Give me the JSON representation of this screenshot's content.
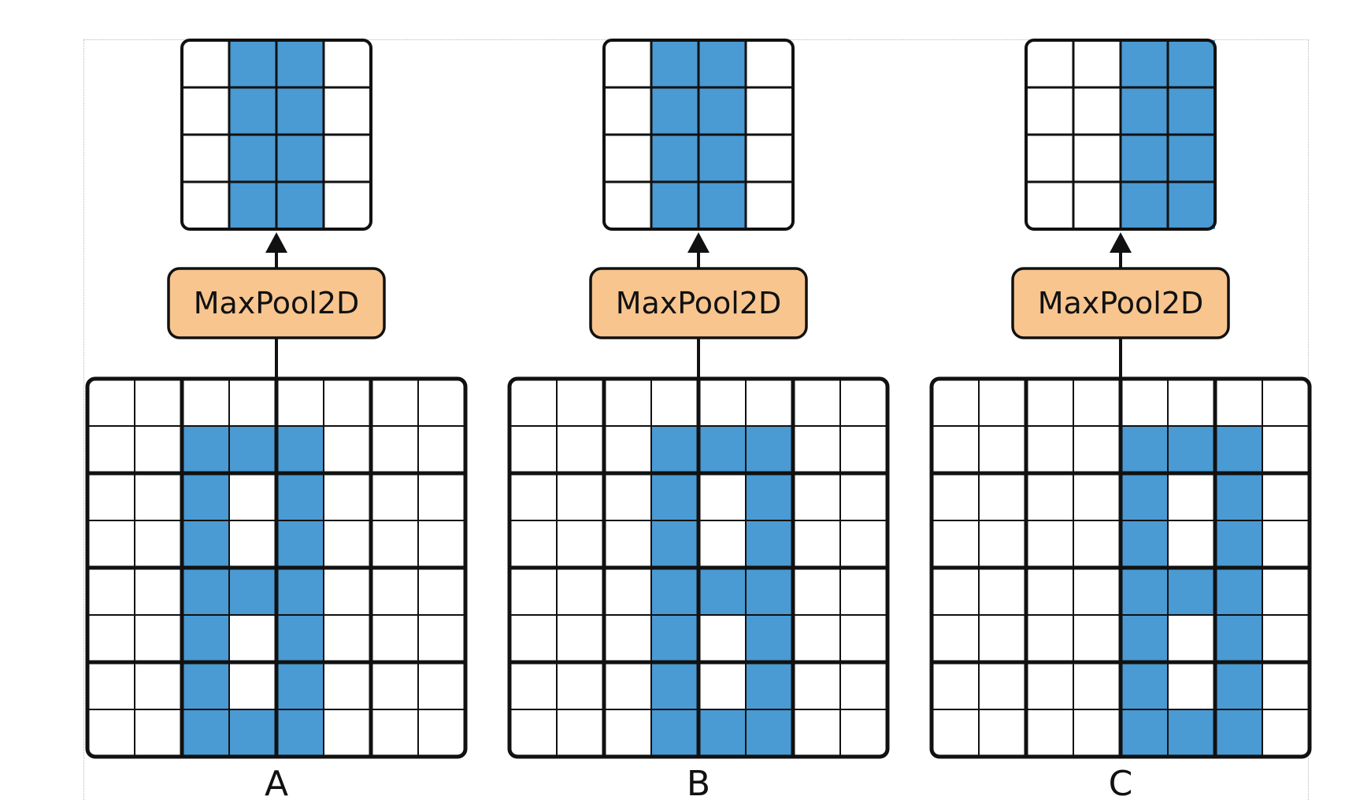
{
  "colors": {
    "fill": "#4a9ad3",
    "empty": "#ffffff",
    "line": "#111111",
    "box_fill": "#f8c58f"
  },
  "panels": [
    {
      "label": "A",
      "op_label": "MaxPool2D",
      "input": [
        [
          0,
          0,
          0,
          0,
          0,
          0,
          0,
          0
        ],
        [
          0,
          0,
          1,
          1,
          1,
          0,
          0,
          0
        ],
        [
          0,
          0,
          1,
          0,
          1,
          0,
          0,
          0
        ],
        [
          0,
          0,
          1,
          0,
          1,
          0,
          0,
          0
        ],
        [
          0,
          0,
          1,
          1,
          1,
          0,
          0,
          0
        ],
        [
          0,
          0,
          1,
          0,
          1,
          0,
          0,
          0
        ],
        [
          0,
          0,
          1,
          0,
          1,
          0,
          0,
          0
        ],
        [
          0,
          0,
          1,
          1,
          1,
          0,
          0,
          0
        ]
      ],
      "output": [
        [
          0,
          1,
          1,
          0
        ],
        [
          0,
          1,
          1,
          0
        ],
        [
          0,
          1,
          1,
          0
        ],
        [
          0,
          1,
          1,
          0
        ]
      ]
    },
    {
      "label": "B",
      "op_label": "MaxPool2D",
      "input": [
        [
          0,
          0,
          0,
          0,
          0,
          0,
          0,
          0
        ],
        [
          0,
          0,
          0,
          1,
          1,
          1,
          0,
          0
        ],
        [
          0,
          0,
          0,
          1,
          0,
          1,
          0,
          0
        ],
        [
          0,
          0,
          0,
          1,
          0,
          1,
          0,
          0
        ],
        [
          0,
          0,
          0,
          1,
          1,
          1,
          0,
          0
        ],
        [
          0,
          0,
          0,
          1,
          0,
          1,
          0,
          0
        ],
        [
          0,
          0,
          0,
          1,
          0,
          1,
          0,
          0
        ],
        [
          0,
          0,
          0,
          1,
          1,
          1,
          0,
          0
        ]
      ],
      "output": [
        [
          0,
          1,
          1,
          0
        ],
        [
          0,
          1,
          1,
          0
        ],
        [
          0,
          1,
          1,
          0
        ],
        [
          0,
          1,
          1,
          0
        ]
      ]
    },
    {
      "label": "C",
      "op_label": "MaxPool2D",
      "input": [
        [
          0,
          0,
          0,
          0,
          0,
          0,
          0,
          0
        ],
        [
          0,
          0,
          0,
          0,
          1,
          1,
          1,
          0
        ],
        [
          0,
          0,
          0,
          0,
          1,
          0,
          1,
          0
        ],
        [
          0,
          0,
          0,
          0,
          1,
          0,
          1,
          0
        ],
        [
          0,
          0,
          0,
          0,
          1,
          1,
          1,
          0
        ],
        [
          0,
          0,
          0,
          0,
          1,
          0,
          1,
          0
        ],
        [
          0,
          0,
          0,
          0,
          1,
          0,
          1,
          0
        ],
        [
          0,
          0,
          0,
          0,
          1,
          1,
          1,
          0
        ]
      ],
      "output": [
        [
          0,
          0,
          1,
          1
        ],
        [
          0,
          0,
          1,
          1
        ],
        [
          0,
          0,
          1,
          1
        ],
        [
          0,
          0,
          1,
          1
        ]
      ]
    }
  ]
}
